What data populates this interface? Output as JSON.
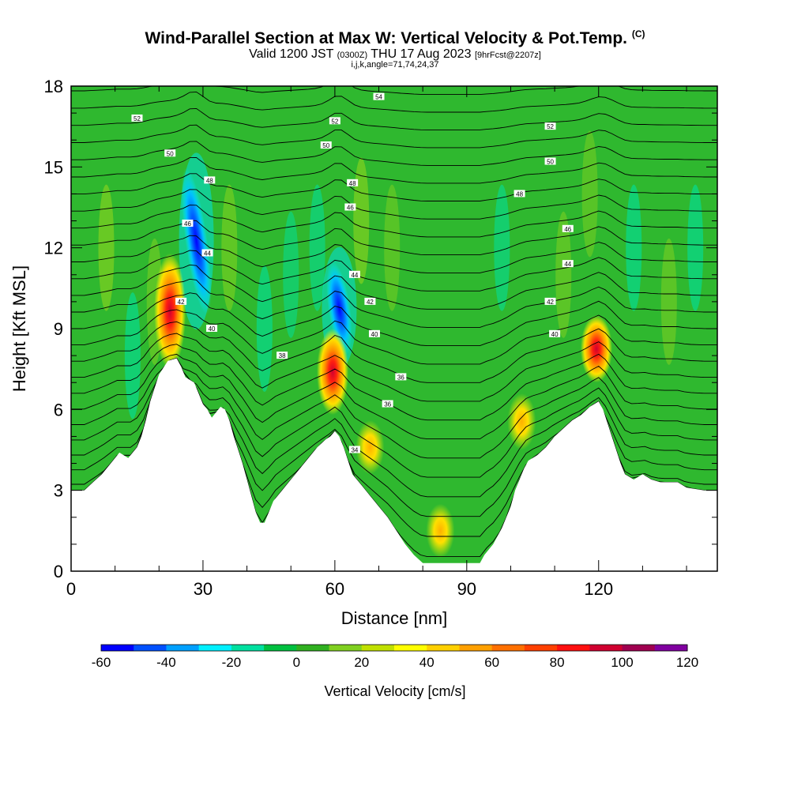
{
  "chart_data": {
    "type": "heatmap",
    "title": "Wind-Parallel Section at Max W: Vertical Velocity & Pot.Temp.",
    "title_mark": "(C)",
    "subtitle_main": "Valid 1200 JST",
    "subtitle_utc": "(0300Z)",
    "subtitle_date": "THU 17 Aug 2023",
    "subtitle_fcst": "[9hrFcst@2207z]",
    "subtitle2": "i,j,k,angle=71,74,24,37",
    "xlabel": "Distance [nm]",
    "ylabel": "Height [Kft MSL]",
    "xlim": [
      0,
      147
    ],
    "ylim": [
      0,
      18
    ],
    "xticks": [
      "0",
      "30",
      "60",
      "90",
      "120"
    ],
    "yticks": [
      "0",
      "3",
      "6",
      "9",
      "12",
      "15",
      "18"
    ],
    "colorbar": {
      "label": "Vertical Velocity [cm/s]",
      "min": -60,
      "max": 120,
      "step": 10,
      "tick_labels": [
        "-60",
        "-40",
        "-20",
        "0",
        "20",
        "40",
        "60",
        "80",
        "100",
        "120"
      ],
      "colors": [
        "#0000ff",
        "#0050ff",
        "#00a0ff",
        "#00f0ff",
        "#00e0a0",
        "#00c040",
        "#30b020",
        "#80d020",
        "#c0e000",
        "#ffff00",
        "#ffd000",
        "#ffa000",
        "#ff7000",
        "#ff4000",
        "#ff1010",
        "#d00030",
        "#a00050",
        "#8000a0"
      ]
    },
    "terrain_kft": [
      [
        0,
        3.0
      ],
      [
        3,
        3.0
      ],
      [
        5,
        3.3
      ],
      [
        7,
        3.6
      ],
      [
        9,
        4.0
      ],
      [
        11,
        4.4
      ],
      [
        13,
        4.2
      ],
      [
        15,
        4.6
      ],
      [
        16,
        5.0
      ],
      [
        17,
        5.6
      ],
      [
        18,
        6.3
      ],
      [
        19,
        6.8
      ],
      [
        20,
        7.3
      ],
      [
        22,
        7.8
      ],
      [
        24,
        7.9
      ],
      [
        25,
        7.6
      ],
      [
        26,
        7.2
      ],
      [
        28,
        7.0
      ],
      [
        29,
        6.6
      ],
      [
        30,
        6.2
      ],
      [
        31,
        6.0
      ],
      [
        32,
        5.7
      ],
      [
        33,
        5.9
      ],
      [
        34,
        6.1
      ],
      [
        35,
        6.0
      ],
      [
        36,
        5.6
      ],
      [
        37,
        5.0
      ],
      [
        38,
        4.5
      ],
      [
        39,
        4.0
      ],
      [
        40,
        3.4
      ],
      [
        41,
        2.8
      ],
      [
        42,
        2.2
      ],
      [
        43,
        1.8
      ],
      [
        44,
        1.8
      ],
      [
        45,
        2.2
      ],
      [
        46,
        2.6
      ],
      [
        48,
        3.0
      ],
      [
        50,
        3.4
      ],
      [
        52,
        3.8
      ],
      [
        54,
        4.2
      ],
      [
        56,
        4.6
      ],
      [
        58,
        4.9
      ],
      [
        59,
        5.0
      ],
      [
        60,
        5.2
      ],
      [
        61,
        5.0
      ],
      [
        62,
        4.6
      ],
      [
        63,
        4.1
      ],
      [
        64,
        3.6
      ],
      [
        66,
        3.2
      ],
      [
        68,
        2.8
      ],
      [
        70,
        2.4
      ],
      [
        72,
        2.0
      ],
      [
        74,
        1.5
      ],
      [
        76,
        1.0
      ],
      [
        78,
        0.6
      ],
      [
        80,
        0.3
      ],
      [
        86,
        0.3
      ],
      [
        90,
        0.3
      ],
      [
        93,
        0.3
      ],
      [
        94,
        0.6
      ],
      [
        96,
        1.0
      ],
      [
        98,
        1.6
      ],
      [
        100,
        2.4
      ],
      [
        101,
        3.0
      ],
      [
        102,
        3.4
      ],
      [
        103,
        3.8
      ],
      [
        104,
        4.1
      ],
      [
        106,
        4.3
      ],
      [
        108,
        4.6
      ],
      [
        110,
        5.0
      ],
      [
        112,
        5.3
      ],
      [
        114,
        5.6
      ],
      [
        116,
        5.8
      ],
      [
        118,
        6.1
      ],
      [
        120,
        6.3
      ],
      [
        121,
        6.0
      ],
      [
        122,
        5.5
      ],
      [
        123,
        5.0
      ],
      [
        124,
        4.5
      ],
      [
        125,
        4.0
      ],
      [
        126,
        3.6
      ],
      [
        128,
        3.4
      ],
      [
        130,
        3.6
      ],
      [
        132,
        3.4
      ],
      [
        134,
        3.3
      ],
      [
        138,
        3.3
      ],
      [
        140,
        3.1
      ],
      [
        144,
        3.0
      ],
      [
        147,
        3.0
      ]
    ],
    "updrafts": [
      {
        "x": 22.5,
        "z_bottom": 7.5,
        "z_top": 11.8,
        "max_cm_s": 100
      },
      {
        "x": 59.5,
        "z_bottom": 5.8,
        "z_top": 9.0,
        "max_cm_s": 90
      },
      {
        "x": 68,
        "z_bottom": 3.6,
        "z_top": 5.6,
        "max_cm_s": 50
      },
      {
        "x": 102.5,
        "z_bottom": 4.5,
        "z_top": 6.6,
        "max_cm_s": 50
      },
      {
        "x": 119.5,
        "z_bottom": 7.0,
        "z_top": 9.5,
        "max_cm_s": 90
      },
      {
        "x": 84,
        "z_bottom": 0.5,
        "z_top": 2.5,
        "max_cm_s": 30
      }
    ],
    "downdrafts": [
      {
        "x": 28.5,
        "z_bottom": 9.5,
        "z_top": 15.0,
        "min_cm_s": -60
      },
      {
        "x": 61,
        "z_bottom": 8.0,
        "z_top": 11.5,
        "min_cm_s": -50
      }
    ],
    "isentrope_labels": [
      {
        "value": "34",
        "x": 64.5,
        "y": 4.5
      },
      {
        "value": "36",
        "x": 72,
        "y": 6.2
      },
      {
        "value": "36",
        "x": 75,
        "y": 7.2
      },
      {
        "value": "38",
        "x": 48,
        "y": 8.0
      },
      {
        "value": "40",
        "x": 32,
        "y": 9.0
      },
      {
        "value": "40",
        "x": 69,
        "y": 8.8
      },
      {
        "value": "40",
        "x": 110,
        "y": 8.8
      },
      {
        "value": "42",
        "x": 25,
        "y": 10.0
      },
      {
        "value": "42",
        "x": 68,
        "y": 10.0
      },
      {
        "value": "42",
        "x": 109,
        "y": 10.0
      },
      {
        "value": "44",
        "x": 31,
        "y": 11.8
      },
      {
        "value": "44",
        "x": 64.5,
        "y": 11.0
      },
      {
        "value": "44",
        "x": 113,
        "y": 11.4
      },
      {
        "value": "46",
        "x": 26.5,
        "y": 12.9
      },
      {
        "value": "46",
        "x": 63.5,
        "y": 13.5
      },
      {
        "value": "46",
        "x": 113,
        "y": 12.7
      },
      {
        "value": "48",
        "x": 31.5,
        "y": 14.5
      },
      {
        "value": "48",
        "x": 64,
        "y": 14.4
      },
      {
        "value": "48",
        "x": 102,
        "y": 14.0
      },
      {
        "value": "50",
        "x": 22.5,
        "y": 15.5
      },
      {
        "value": "50",
        "x": 58,
        "y": 15.8
      },
      {
        "value": "50",
        "x": 109,
        "y": 15.2
      },
      {
        "value": "52",
        "x": 15,
        "y": 16.8
      },
      {
        "value": "52",
        "x": 60,
        "y": 16.7
      },
      {
        "value": "52",
        "x": 109,
        "y": 16.5
      },
      {
        "value": "54",
        "x": 70,
        "y": 17.6
      }
    ]
  }
}
